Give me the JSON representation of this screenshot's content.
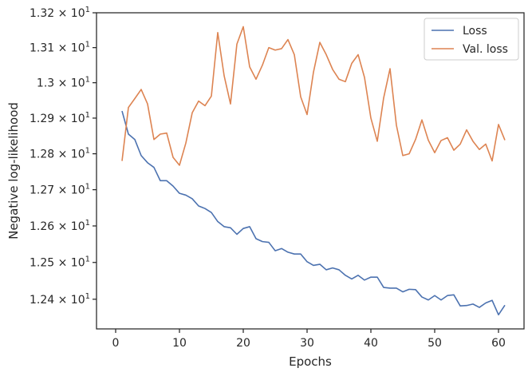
{
  "chart_data": {
    "type": "line",
    "xlabel": "Epochs",
    "ylabel": "Negative log-likelihood",
    "xlim": [
      -3,
      64
    ],
    "ylim": [
      12.32,
      13.2
    ],
    "yscale": "log",
    "xticks": [
      0,
      10,
      20,
      30,
      40,
      50,
      60
    ],
    "yticks": [
      {
        "value": 12.4,
        "mantissa": "1.24"
      },
      {
        "value": 12.5,
        "mantissa": "1.25"
      },
      {
        "value": 12.6,
        "mantissa": "1.26"
      },
      {
        "value": 12.7,
        "mantissa": "1.27"
      },
      {
        "value": 12.8,
        "mantissa": "1.28"
      },
      {
        "value": 12.9,
        "mantissa": "1.29"
      },
      {
        "value": 13.0,
        "mantissa": "1.3"
      },
      {
        "value": 13.1,
        "mantissa": "1.31"
      },
      {
        "value": 13.2,
        "mantissa": "1.32"
      }
    ],
    "tick_suffix": "× 10",
    "tick_exponent": "1",
    "grid": false,
    "legend": "top-right",
    "series": [
      {
        "name": "Loss",
        "color": "#4c72b0",
        "x": [
          1,
          2,
          3,
          4,
          5,
          6,
          7,
          8,
          9,
          10,
          11,
          12,
          13,
          14,
          15,
          16,
          17,
          18,
          19,
          20,
          21,
          22,
          23,
          24,
          25,
          26,
          27,
          28,
          29,
          30,
          31,
          32,
          33,
          34,
          35,
          36,
          37,
          38,
          39,
          40,
          41,
          42,
          43,
          44,
          45,
          46,
          47,
          48,
          49,
          50,
          51,
          52,
          53,
          54,
          55,
          56,
          57,
          58,
          59,
          60,
          61
        ],
        "values": [
          12.92,
          12.855,
          12.84,
          12.795,
          12.775,
          12.762,
          12.725,
          12.725,
          12.71,
          12.69,
          12.685,
          12.675,
          12.655,
          12.648,
          12.637,
          12.612,
          12.598,
          12.595,
          12.577,
          12.593,
          12.598,
          12.565,
          12.557,
          12.555,
          12.532,
          12.538,
          12.528,
          12.523,
          12.523,
          12.502,
          12.492,
          12.495,
          12.48,
          12.485,
          12.48,
          12.465,
          12.455,
          12.465,
          12.452,
          12.46,
          12.46,
          12.432,
          12.43,
          12.43,
          12.42,
          12.427,
          12.426,
          12.406,
          12.398,
          12.41,
          12.398,
          12.41,
          12.412,
          12.382,
          12.383,
          12.387,
          12.378,
          12.39,
          12.397,
          12.358,
          12.384
        ]
      },
      {
        "name": "Val. loss",
        "color": "#dd8452",
        "x": [
          1,
          2,
          3,
          4,
          5,
          6,
          7,
          8,
          9,
          10,
          11,
          12,
          13,
          14,
          15,
          16,
          17,
          18,
          19,
          20,
          21,
          22,
          23,
          24,
          25,
          26,
          27,
          28,
          29,
          30,
          31,
          32,
          33,
          34,
          35,
          36,
          37,
          38,
          39,
          40,
          41,
          42,
          43,
          44,
          45,
          46,
          47,
          48,
          49,
          50,
          51,
          52,
          53,
          54,
          55,
          56,
          57,
          58,
          59,
          60,
          61
        ],
        "values": [
          12.78,
          12.93,
          12.955,
          12.981,
          12.94,
          12.84,
          12.855,
          12.858,
          12.79,
          12.768,
          12.83,
          12.915,
          12.948,
          12.935,
          12.962,
          13.143,
          13.02,
          12.94,
          13.11,
          13.16,
          13.045,
          13.01,
          13.05,
          13.1,
          13.093,
          13.097,
          13.123,
          13.08,
          12.96,
          12.91,
          13.03,
          13.115,
          13.08,
          13.038,
          13.01,
          13.003,
          13.055,
          13.08,
          13.015,
          12.9,
          12.835,
          12.957,
          13.04,
          12.88,
          12.795,
          12.8,
          12.84,
          12.895,
          12.838,
          12.803,
          12.837,
          12.845,
          12.81,
          12.827,
          12.867,
          12.835,
          12.812,
          12.827,
          12.78,
          12.882,
          12.838
        ]
      }
    ]
  }
}
